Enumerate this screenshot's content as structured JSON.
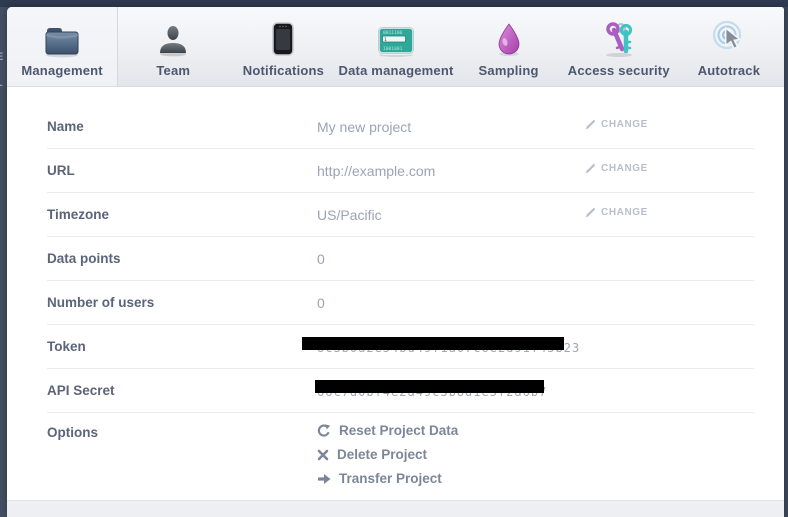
{
  "frame": {
    "top_color": "#2e3b50",
    "side_color": "#445062",
    "clipped_background_letters": [
      "E",
      "L"
    ]
  },
  "tabs": {
    "selected": "Management",
    "items": [
      {
        "label": "Management",
        "icon": "folder-icon",
        "selected": true
      },
      {
        "label": "Team",
        "icon": "user-icon",
        "selected": false
      },
      {
        "label": "Notifications",
        "icon": "phone-icon",
        "selected": false
      },
      {
        "label": "Data management",
        "icon": "data-card-icon",
        "selected": false
      },
      {
        "label": "Sampling",
        "icon": "droplet-icon",
        "selected": false
      },
      {
        "label": "Access security",
        "icon": "keys-icon",
        "selected": false
      },
      {
        "label": "Autotrack",
        "icon": "cursor-target-icon",
        "selected": false
      }
    ]
  },
  "settings": {
    "change_label": "CHANGE",
    "rows": [
      {
        "label": "Name",
        "value": "My new project",
        "action": "change"
      },
      {
        "label": "URL",
        "value": "http://example.com",
        "action": "change"
      },
      {
        "label": "Timezone",
        "value": "US/Pacific",
        "action": "change"
      },
      {
        "label": "Data points",
        "value": "0"
      },
      {
        "label": "Number of users",
        "value": "0"
      },
      {
        "label": "Token",
        "masked": "token",
        "masked_hint": "8c3b0a2e54bd49f1a07c6e2d91f45b23"
      },
      {
        "label": "API Secret",
        "masked": "secret",
        "masked_hint": "66c7d0bf4e2a49c3b8d1e5f2a6b7"
      }
    ],
    "options": {
      "label": "Options",
      "links": [
        {
          "icon": "reset-icon",
          "label": "Reset Project Data"
        },
        {
          "icon": "delete-icon",
          "label": "Delete Project"
        },
        {
          "icon": "transfer-icon",
          "label": "Transfer Project"
        }
      ]
    }
  },
  "colors": {
    "label_text": "#5b6478",
    "value_text": "#9ba3b6",
    "change_link": "#b9bfca",
    "option_link": "#7d8699",
    "divider": "#e9ebef",
    "tab_label": "#4d576d",
    "redaction": "#000000"
  }
}
